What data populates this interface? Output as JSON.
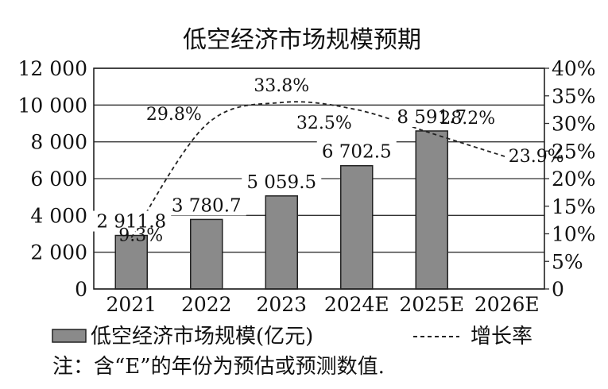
{
  "chart_data": {
    "type": "bar",
    "title": "低空经济市场规模预期",
    "categories": [
      "2021",
      "2022",
      "2023",
      "2024E",
      "2025E",
      "2026E"
    ],
    "series": [
      {
        "name": "低空经济市场规模(亿元)",
        "kind": "bar",
        "axis": "left",
        "values": [
          2911.8,
          3780.7,
          5059.5,
          6702.5,
          8591.7,
          null
        ],
        "labels": [
          "2 911.8",
          "3 780.7",
          "5 059.5",
          "6 702.5",
          "8 591.7",
          ""
        ],
        "color": "#8a8a8a"
      },
      {
        "name": "增长率",
        "kind": "line",
        "style": "dashed",
        "axis": "right",
        "values": [
          9.3,
          29.8,
          33.8,
          32.5,
          28.2,
          23.9
        ],
        "labels": [
          "9.3%",
          "29.8%",
          "33.8%",
          "32.5%",
          "28.2%",
          "23.9%"
        ],
        "color": "#222222"
      }
    ],
    "left_axis": {
      "ylim": [
        0,
        12000
      ],
      "ticks": [
        0,
        2000,
        4000,
        6000,
        8000,
        10000,
        12000
      ],
      "tick_labels": [
        "0",
        "2 000",
        "4 000",
        "6 000",
        "8 000",
        "10 000",
        "12 000"
      ]
    },
    "right_axis": {
      "ylim": [
        0,
        40
      ],
      "ticks": [
        0,
        5,
        10,
        15,
        20,
        25,
        30,
        35,
        40
      ],
      "tick_labels": [
        "0",
        "5%",
        "10%",
        "15%",
        "20%",
        "25%",
        "30%",
        "35%",
        "40%"
      ]
    },
    "grid": "horizontal",
    "legend_position": "bottom",
    "legend": {
      "bar_label": "低空经济市场规模(亿元)",
      "line_label": "增长率"
    },
    "note": "注：含“E”的年份为预估或预测数值."
  }
}
